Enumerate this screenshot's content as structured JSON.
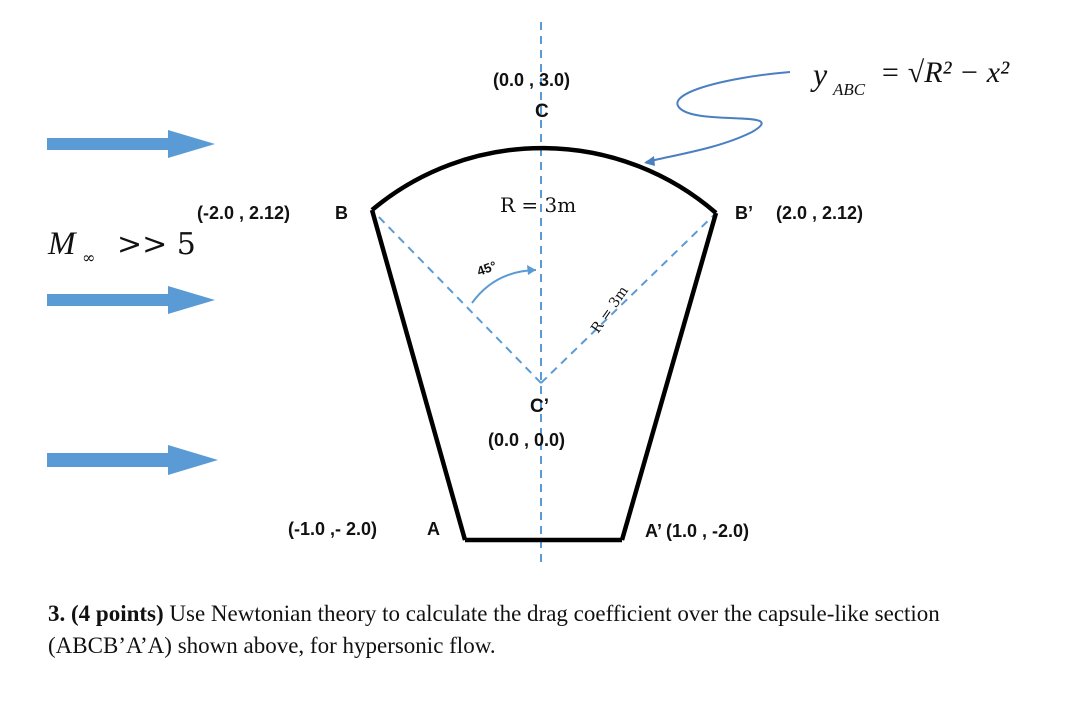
{
  "diagram": {
    "labels": {
      "c_coord": "(0.0 , 3.0)",
      "c_name": "C",
      "b_coord": "(-2.0 , 2.12)",
      "b_name": "B",
      "bp_name": "B’",
      "bp_coord": "(2.0 , 2.12)",
      "cp_name": "C’",
      "cp_coord": "(0.0 , 0.0)",
      "a_coord": "(-1.0 ,- 2.0)",
      "a_name": "A",
      "ap_label": "A’ (1.0 , -2.0)",
      "radius_center": "R = 3m",
      "radius_slant": "R = 3m",
      "angle": "45°"
    },
    "equation": {
      "lhs": "y",
      "subscript": "ABC",
      "rhs": "= √R² − x²"
    },
    "mach": {
      "text": "M",
      "subscript": "∞",
      "relation": ">> 5"
    },
    "colors": {
      "arrow_fill": "#5b9bd5",
      "dashed_line": "#5b9bd5",
      "outline": "#000000",
      "pointer": "#4a7fc1"
    },
    "icons": [
      "flow-arrow-icon",
      "flow-arrow-icon",
      "flow-arrow-icon"
    ]
  },
  "problem": {
    "number": "3.",
    "points": "(4 points)",
    "text": "Use Newtonian theory to calculate the drag coefficient over the capsule-like section (ABCB’A’A) shown above, for hypersonic flow."
  }
}
